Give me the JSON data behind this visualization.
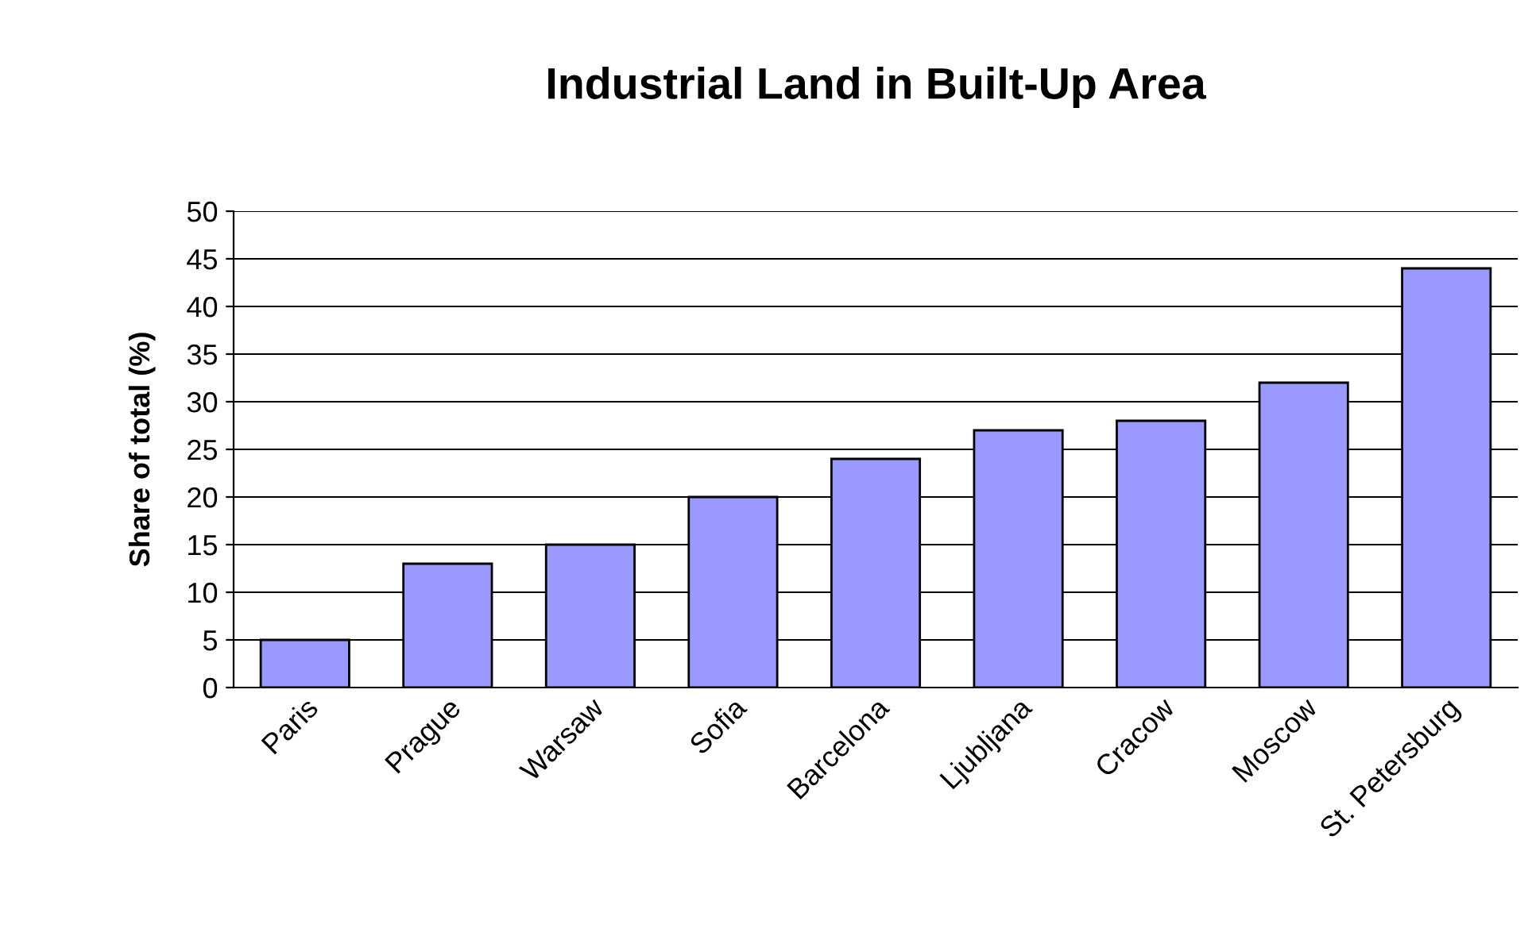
{
  "chart_data": {
    "type": "bar",
    "title": "Industrial Land in Built-Up Area",
    "ylabel": "Share of total (%)",
    "categories": [
      "Paris",
      "Prague",
      "Warsaw",
      "Sofia",
      "Barcelona",
      "Ljubljana",
      "Cracow",
      "Moscow",
      "St. Petersburg"
    ],
    "values": [
      5,
      13,
      15,
      20,
      24,
      27,
      28,
      32,
      44
    ],
    "color": "#9999ff",
    "ylim": [
      0,
      50
    ],
    "yticks": [
      0,
      5,
      10,
      15,
      20,
      25,
      30,
      35,
      40,
      45,
      50
    ],
    "grid": "y",
    "legend": false
  }
}
